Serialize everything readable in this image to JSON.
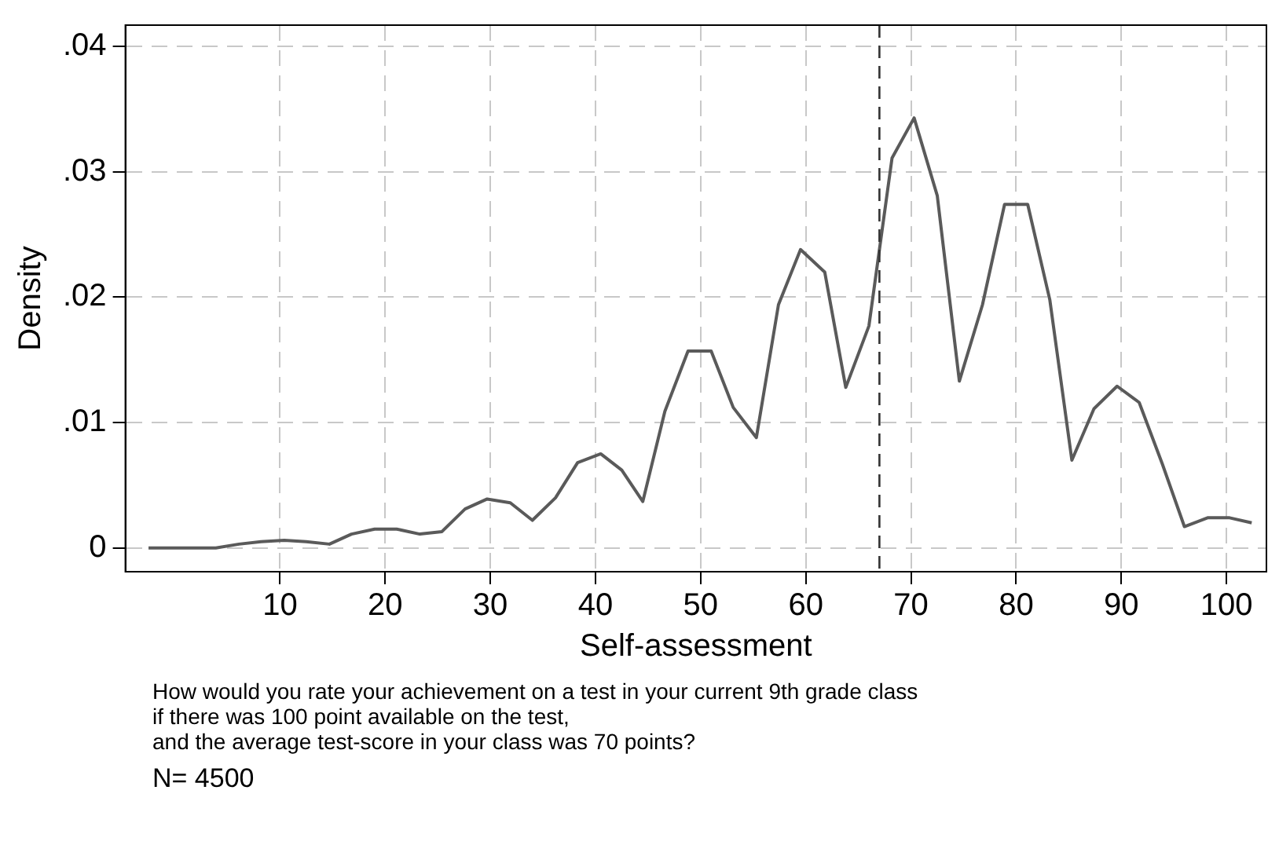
{
  "chart_data": {
    "type": "line",
    "xlabel": "Self-assessment",
    "ylabel": "Density",
    "x": [
      -2.5,
      -0.4,
      1.8,
      3.9,
      6.1,
      8.2,
      10.4,
      12.5,
      14.7,
      16.8,
      19.0,
      21.1,
      23.3,
      25.4,
      27.6,
      29.7,
      31.9,
      34.0,
      36.2,
      38.3,
      40.5,
      42.5,
      44.5,
      46.6,
      48.8,
      51.0,
      53.1,
      55.3,
      57.4,
      59.5,
      61.8,
      63.8,
      66.0,
      68.2,
      70.3,
      72.5,
      74.6,
      76.8,
      78.9,
      81.1,
      83.2,
      85.3,
      87.4,
      89.6,
      91.7,
      93.9,
      96.0,
      98.2,
      100.3,
      102.4
    ],
    "series": [
      {
        "color": "#5a5a5a",
        "values": [
          0,
          0,
          0,
          0,
          0.0003,
          0.0005,
          0.0006,
          0.0005,
          0.0003,
          0.0011,
          0.0015,
          0.0015,
          0.0011,
          0.0013,
          0.0031,
          0.0039,
          0.0036,
          0.0022,
          0.004,
          0.0068,
          0.0075,
          0.0062,
          0.0037,
          0.0109,
          0.0157,
          0.0157,
          0.0112,
          0.0088,
          0.0194,
          0.0238,
          0.022,
          0.0128,
          0.0177,
          0.0311,
          0.0343,
          0.0281,
          0.0133,
          0.0194,
          0.0274,
          0.0274,
          0.0198,
          0.007,
          0.0111,
          0.0129,
          0.0116,
          0.0067,
          0.0017,
          0.0024,
          0.0024,
          0.002
        ]
      }
    ],
    "xlim": [
      -4.7,
      103.8
    ],
    "xticks": [
      10,
      20,
      30,
      40,
      50,
      60,
      70,
      80,
      90,
      100
    ],
    "ylim": [
      -0.0019,
      0.0417
    ],
    "yticks": [
      0,
      {
        "value": 0.01,
        "label": ".01"
      },
      {
        "value": 0.02,
        "label": ".02"
      },
      {
        "value": 0.03,
        "label": ".03"
      },
      {
        "value": 0.04,
        "label": ".04"
      }
    ],
    "grid": true,
    "marker": "none",
    "line_style": "solid",
    "legend": false,
    "ref_lines": [
      {
        "axis": "x",
        "value": 67,
        "color": "#333333",
        "line_style": "dashed"
      }
    ],
    "annotations": [
      "How would you rate your achievement on a test in your current 9th grade class",
      "if there was 100 point available on the test,",
      "and the average test-score in your class was 70 points?",
      "N= 4500"
    ]
  }
}
